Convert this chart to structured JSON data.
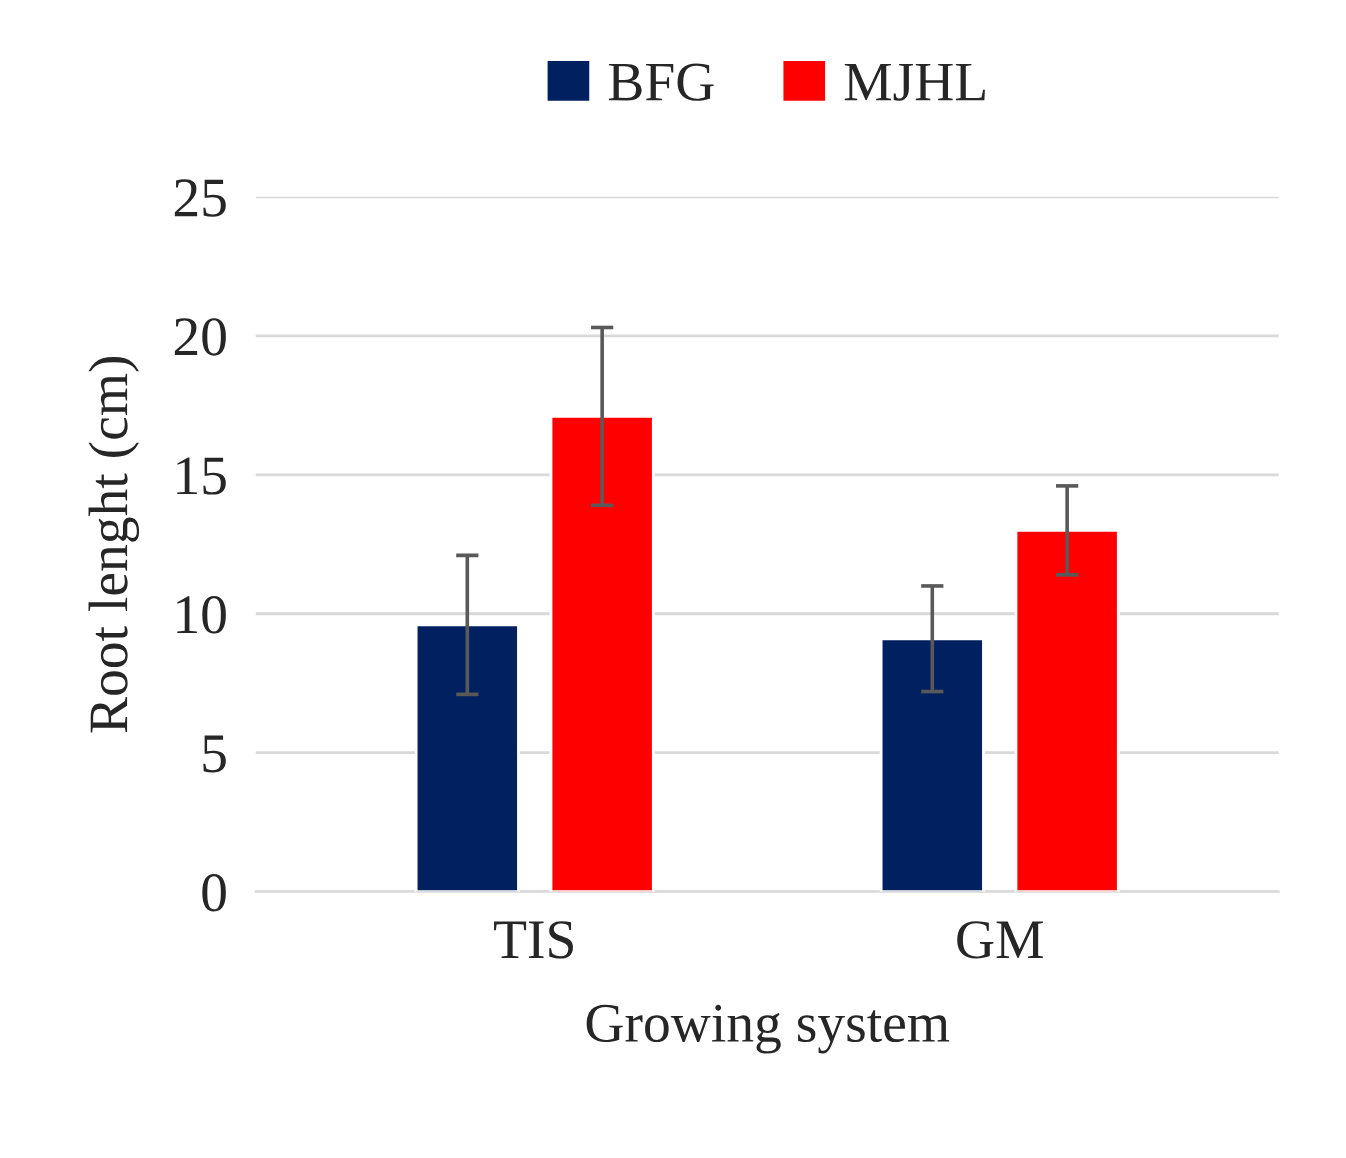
{
  "chart_data": {
    "type": "bar",
    "xlabel": "Growing system",
    "ylabel": "Root lenght (cm)",
    "categories": [
      "TIS",
      "GM"
    ],
    "series": [
      {
        "name": "BFG",
        "color": "#002060",
        "values": [
          9.6,
          9.1
        ],
        "errors": [
          2.5,
          1.9
        ]
      },
      {
        "name": "MJHL",
        "color": "#ff0000",
        "values": [
          17.1,
          13.0
        ],
        "errors": [
          3.2,
          1.6
        ]
      }
    ],
    "ylim": [
      0,
      25
    ],
    "yticks": [
      0,
      5,
      10,
      15,
      20,
      25
    ],
    "grid": "y",
    "legend": "top"
  }
}
